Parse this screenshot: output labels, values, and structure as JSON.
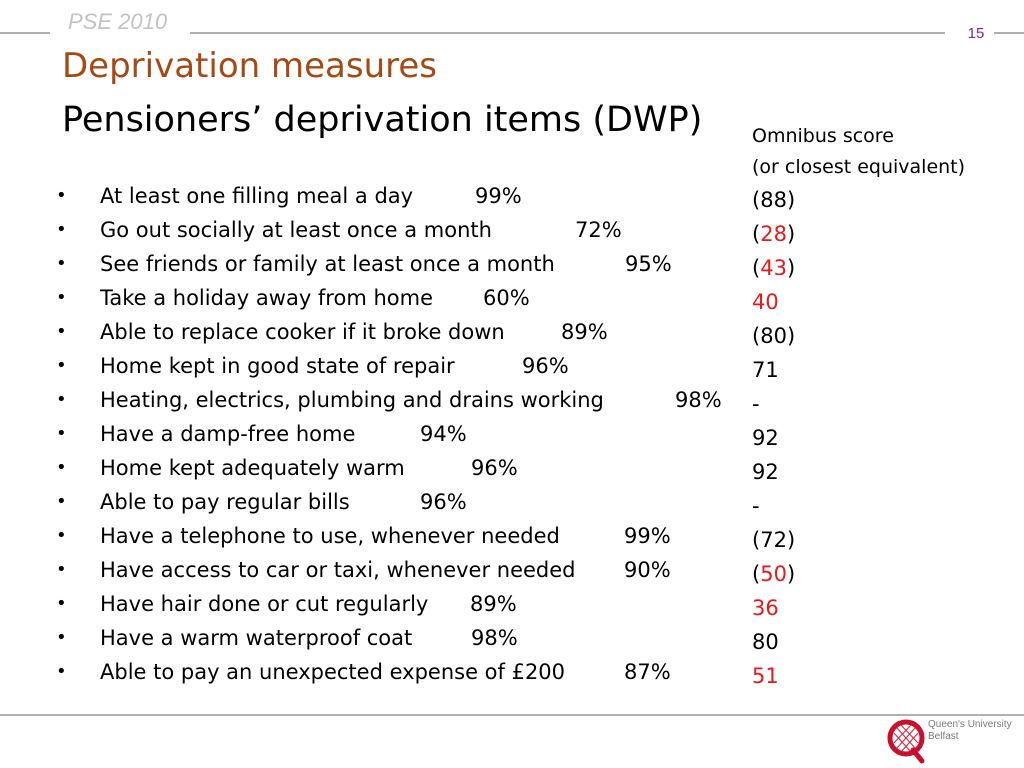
{
  "header": {
    "label": "PSE 2010",
    "slide_number": "15"
  },
  "title": "Deprivation measures",
  "subtitle": "Pensioners’ deprivation items (DWP)",
  "items": [
    {
      "bullet": "•",
      "label": "At least one filling meal a day",
      "percent": "99%"
    },
    {
      "bullet": "•",
      "label": "Go out socially at least once a month",
      "percent": "72%"
    },
    {
      "bullet": "•",
      "label": "See friends or family at least once a month",
      "percent": "95%"
    },
    {
      "bullet": "•",
      "label": "Take a holiday away from home",
      "percent": "60%"
    },
    {
      "bullet": "•",
      "label": "Able to replace cooker if it broke down",
      "percent": "89%"
    },
    {
      "bullet": "•",
      "label": "Home kept in good state of repair",
      "percent": "96%"
    },
    {
      "bullet": "•",
      "label": "Heating, electrics, plumbing and drains working",
      "percent": "98%"
    },
    {
      "bullet": "•",
      "label": "Have a damp-free home",
      "percent": "94%"
    },
    {
      "bullet": "•",
      "label": "Home kept adequately warm",
      "percent": "96%"
    },
    {
      "bullet": "•",
      "label": "Able to pay regular bills",
      "percent": "96%"
    },
    {
      "bullet": "•",
      "label": "Have a telephone to use, whenever needed",
      "percent": "99%"
    },
    {
      "bullet": "•",
      "label": "Have access to car or taxi, whenever needed",
      "percent": "90%"
    },
    {
      "bullet": "•",
      "label": "Have hair done or cut regularly",
      "percent": "89%"
    },
    {
      "bullet": "•",
      "label": "Have a warm waterproof coat",
      "percent": "98%"
    },
    {
      "bullet": "•",
      "label": "Able to pay an unexpected expense of £200",
      "percent": "87%"
    }
  ],
  "omnibus": {
    "heading_line1": "Omnibus score",
    "heading_line2": "(or closest equivalent)",
    "scores": [
      {
        "open": "(",
        "value": "88",
        "close": ")",
        "highlight": false
      },
      {
        "open": "(",
        "value": "28",
        "close": ")",
        "highlight": true
      },
      {
        "open": "(",
        "value": "43",
        "close": ")",
        "highlight": true
      },
      {
        "open": "",
        "value": "40",
        "close": "",
        "highlight": true
      },
      {
        "open": "(",
        "value": "80",
        "close": ")",
        "highlight": false
      },
      {
        "open": "",
        "value": "71",
        "close": "",
        "highlight": false
      },
      {
        "open": "",
        "value": "-",
        "close": "",
        "highlight": false
      },
      {
        "open": "",
        "value": "92",
        "close": "",
        "highlight": false
      },
      {
        "open": "",
        "value": "92",
        "close": "",
        "highlight": false
      },
      {
        "open": "",
        "value": "-",
        "close": "",
        "highlight": false
      },
      {
        "open": "(",
        "value": "72",
        "close": ")",
        "highlight": false
      },
      {
        "open": "(",
        "value": "50",
        "close": ")",
        "highlight": true
      },
      {
        "open": "",
        "value": "36",
        "close": "",
        "highlight": true
      },
      {
        "open": "",
        "value": "80",
        "close": "",
        "highlight": false
      },
      {
        "open": "",
        "value": "51",
        "close": "",
        "highlight": true
      }
    ]
  },
  "logo": {
    "icon": "queens-university-crest-icon",
    "line1": "Queen's University",
    "line2": "Belfast"
  },
  "colors": {
    "title": "#a54a14",
    "highlight": "#e8191b",
    "header_label": "#c2c2c2",
    "slide_number": "#7a2a8a",
    "rule": "#b0b0b0",
    "logo_red": "#c8102e"
  }
}
